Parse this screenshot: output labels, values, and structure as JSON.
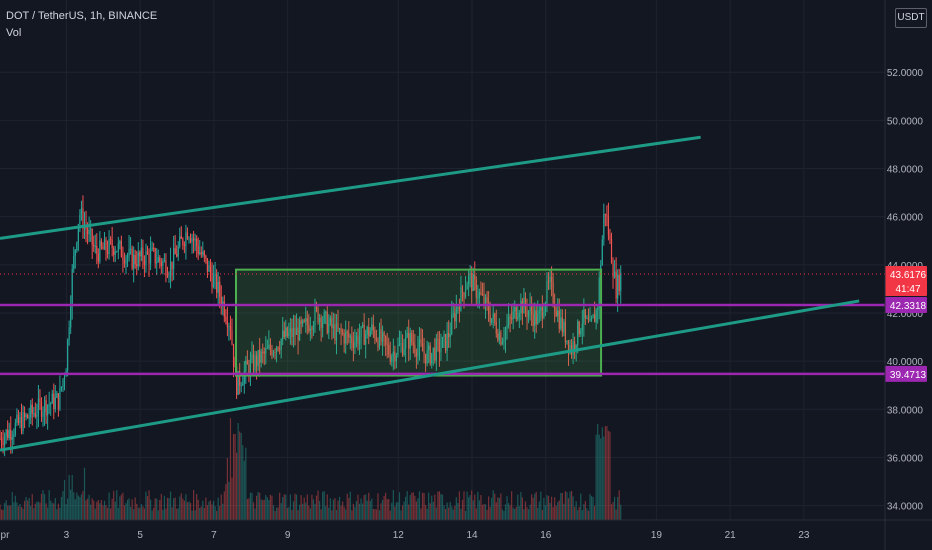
{
  "header": {
    "symbol_line": "DOT / TetherUS, 1h, BINANCE",
    "indicator": "Vol",
    "currency_button": "USDT"
  },
  "colors": {
    "background": "#131722",
    "grid": "#1f2330",
    "up": "#26a69a",
    "down": "#ef5350",
    "channel": "#1e9b86",
    "support": "#9c27b0",
    "range_box": "#4caf50",
    "last_price": "#f23645"
  },
  "chart_data": {
    "type": "candlestick",
    "symbol": "DOT / TetherUS",
    "interval": "1h",
    "exchange": "BINANCE",
    "y_axis": {
      "ticks": [
        34,
        36,
        38,
        40,
        42,
        44,
        46,
        48,
        50,
        52
      ],
      "tick_labels": [
        "34.0000",
        "36.0000",
        "38.0000",
        "40.0000",
        "42.0000",
        "44.0000",
        "46.0000",
        "48.0000",
        "50.0000",
        "52.0000"
      ],
      "range": [
        33.4,
        55.0
      ]
    },
    "x_axis": {
      "ticks": [
        1,
        3,
        5,
        7,
        9,
        12,
        14,
        16,
        19,
        21,
        23
      ],
      "tick_labels": [
        "pr",
        "3",
        "5",
        "7",
        "9",
        "12",
        "14",
        "16",
        "19",
        "21",
        "23"
      ],
      "range": [
        1.2,
        25.2
      ]
    },
    "price_anchors": [
      [
        1.2,
        36.8
      ],
      [
        1.8,
        37.5
      ],
      [
        2.3,
        38.1
      ],
      [
        2.8,
        38.4
      ],
      [
        3.0,
        40.0
      ],
      [
        3.15,
        43.5
      ],
      [
        3.35,
        46.2
      ],
      [
        3.8,
        44.5
      ],
      [
        4.3,
        44.8
      ],
      [
        4.8,
        44.2
      ],
      [
        5.3,
        44.4
      ],
      [
        5.8,
        43.9
      ],
      [
        6.3,
        45.5
      ],
      [
        6.8,
        44.0
      ],
      [
        7.1,
        43.0
      ],
      [
        7.45,
        41.5
      ],
      [
        7.6,
        39.0
      ],
      [
        7.9,
        39.7
      ],
      [
        8.4,
        40.3
      ],
      [
        8.9,
        41.0
      ],
      [
        9.4,
        41.3
      ],
      [
        9.8,
        42.0
      ],
      [
        10.3,
        41.2
      ],
      [
        10.8,
        40.9
      ],
      [
        11.3,
        41.3
      ],
      [
        11.8,
        40.3
      ],
      [
        12.3,
        40.9
      ],
      [
        12.8,
        40.2
      ],
      [
        13.3,
        40.8
      ],
      [
        13.6,
        42.3
      ],
      [
        13.9,
        43.5
      ],
      [
        14.3,
        42.5
      ],
      [
        14.8,
        41.0
      ],
      [
        15.3,
        42.4
      ],
      [
        15.8,
        41.7
      ],
      [
        16.1,
        43.2
      ],
      [
        16.4,
        41.6
      ],
      [
        16.7,
        40.5
      ],
      [
        17.0,
        41.8
      ],
      [
        17.2,
        41.3
      ],
      [
        17.4,
        42.2
      ],
      [
        17.6,
        46.5
      ],
      [
        17.75,
        44.8
      ],
      [
        17.9,
        43.0
      ],
      [
        18.05,
        43.6
      ]
    ],
    "volume_note": "Vol histogram (relative), peaks near 7.6 and 17.5",
    "drawings": {
      "upper_channel": {
        "from": [
          1.2,
          45.1
        ],
        "to": [
          20.2,
          49.3
        ]
      },
      "lower_channel": {
        "from": [
          1.2,
          36.3
        ],
        "to": [
          24.5,
          42.5
        ]
      },
      "range_box": {
        "x": [
          7.6,
          17.5
        ],
        "y": [
          39.4,
          43.8
        ]
      },
      "support_lines": [
        42.3318,
        39.4713
      ]
    },
    "last_price": 43.6176,
    "countdown": "41:47",
    "price_labels": {
      "last": "43.6176",
      "countdown": "41:47",
      "support_upper": "42.3318",
      "support_lower": "39.4713"
    }
  }
}
